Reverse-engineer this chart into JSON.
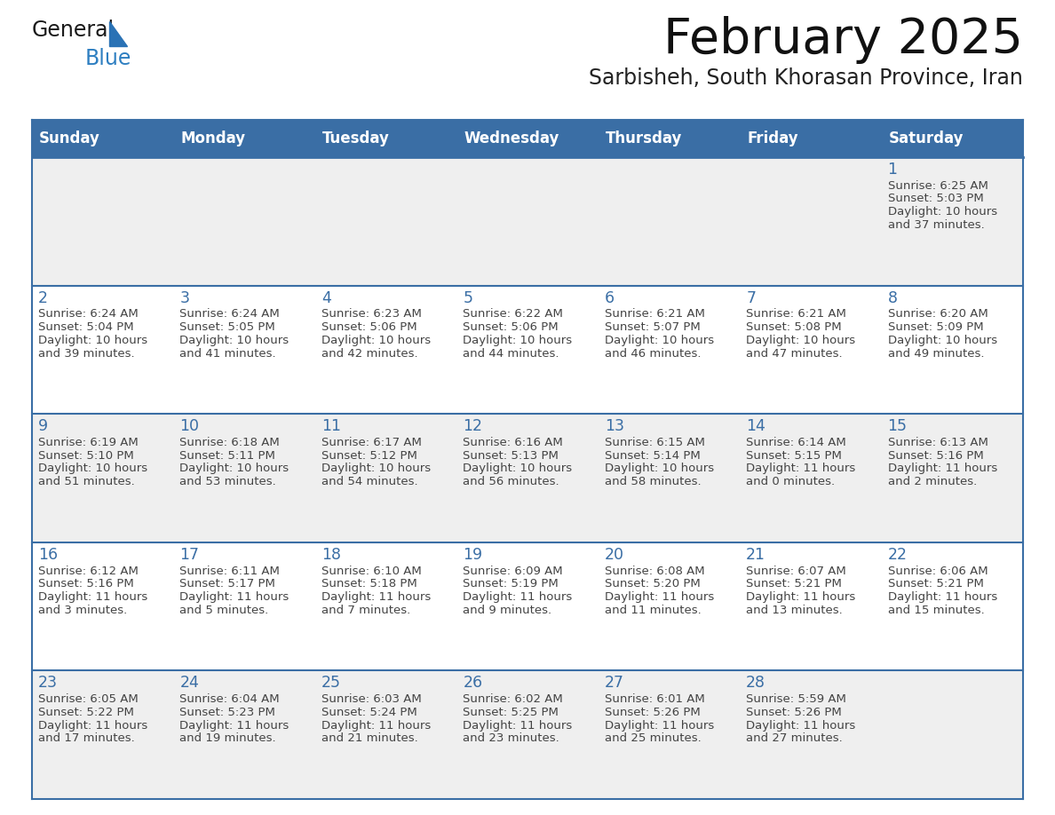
{
  "title": "February 2025",
  "subtitle": "Sarbisheh, South Khorasan Province, Iran",
  "header_bg_color": "#3a6ea5",
  "header_text_color": "#ffffff",
  "cell_bg_row0": "#efefef",
  "cell_bg_even": "#efefef",
  "cell_bg_odd": "#ffffff",
  "separator_color": "#3a6ea5",
  "day_text_color": "#3a6ea5",
  "info_text_color": "#444444",
  "weekdays": [
    "Sunday",
    "Monday",
    "Tuesday",
    "Wednesday",
    "Thursday",
    "Friday",
    "Saturday"
  ],
  "days": [
    {
      "day": 1,
      "col": 6,
      "row": 0,
      "sunrise": "6:25 AM",
      "sunset": "5:03 PM",
      "daylight_h": "10 hours",
      "daylight_m": "and 37 minutes."
    },
    {
      "day": 2,
      "col": 0,
      "row": 1,
      "sunrise": "6:24 AM",
      "sunset": "5:04 PM",
      "daylight_h": "10 hours",
      "daylight_m": "and 39 minutes."
    },
    {
      "day": 3,
      "col": 1,
      "row": 1,
      "sunrise": "6:24 AM",
      "sunset": "5:05 PM",
      "daylight_h": "10 hours",
      "daylight_m": "and 41 minutes."
    },
    {
      "day": 4,
      "col": 2,
      "row": 1,
      "sunrise": "6:23 AM",
      "sunset": "5:06 PM",
      "daylight_h": "10 hours",
      "daylight_m": "and 42 minutes."
    },
    {
      "day": 5,
      "col": 3,
      "row": 1,
      "sunrise": "6:22 AM",
      "sunset": "5:06 PM",
      "daylight_h": "10 hours",
      "daylight_m": "and 44 minutes."
    },
    {
      "day": 6,
      "col": 4,
      "row": 1,
      "sunrise": "6:21 AM",
      "sunset": "5:07 PM",
      "daylight_h": "10 hours",
      "daylight_m": "and 46 minutes."
    },
    {
      "day": 7,
      "col": 5,
      "row": 1,
      "sunrise": "6:21 AM",
      "sunset": "5:08 PM",
      "daylight_h": "10 hours",
      "daylight_m": "and 47 minutes."
    },
    {
      "day": 8,
      "col": 6,
      "row": 1,
      "sunrise": "6:20 AM",
      "sunset": "5:09 PM",
      "daylight_h": "10 hours",
      "daylight_m": "and 49 minutes."
    },
    {
      "day": 9,
      "col": 0,
      "row": 2,
      "sunrise": "6:19 AM",
      "sunset": "5:10 PM",
      "daylight_h": "10 hours",
      "daylight_m": "and 51 minutes."
    },
    {
      "day": 10,
      "col": 1,
      "row": 2,
      "sunrise": "6:18 AM",
      "sunset": "5:11 PM",
      "daylight_h": "10 hours",
      "daylight_m": "and 53 minutes."
    },
    {
      "day": 11,
      "col": 2,
      "row": 2,
      "sunrise": "6:17 AM",
      "sunset": "5:12 PM",
      "daylight_h": "10 hours",
      "daylight_m": "and 54 minutes."
    },
    {
      "day": 12,
      "col": 3,
      "row": 2,
      "sunrise": "6:16 AM",
      "sunset": "5:13 PM",
      "daylight_h": "10 hours",
      "daylight_m": "and 56 minutes."
    },
    {
      "day": 13,
      "col": 4,
      "row": 2,
      "sunrise": "6:15 AM",
      "sunset": "5:14 PM",
      "daylight_h": "10 hours",
      "daylight_m": "and 58 minutes."
    },
    {
      "day": 14,
      "col": 5,
      "row": 2,
      "sunrise": "6:14 AM",
      "sunset": "5:15 PM",
      "daylight_h": "11 hours",
      "daylight_m": "and 0 minutes."
    },
    {
      "day": 15,
      "col": 6,
      "row": 2,
      "sunrise": "6:13 AM",
      "sunset": "5:16 PM",
      "daylight_h": "11 hours",
      "daylight_m": "and 2 minutes."
    },
    {
      "day": 16,
      "col": 0,
      "row": 3,
      "sunrise": "6:12 AM",
      "sunset": "5:16 PM",
      "daylight_h": "11 hours",
      "daylight_m": "and 3 minutes."
    },
    {
      "day": 17,
      "col": 1,
      "row": 3,
      "sunrise": "6:11 AM",
      "sunset": "5:17 PM",
      "daylight_h": "11 hours",
      "daylight_m": "and 5 minutes."
    },
    {
      "day": 18,
      "col": 2,
      "row": 3,
      "sunrise": "6:10 AM",
      "sunset": "5:18 PM",
      "daylight_h": "11 hours",
      "daylight_m": "and 7 minutes."
    },
    {
      "day": 19,
      "col": 3,
      "row": 3,
      "sunrise": "6:09 AM",
      "sunset": "5:19 PM",
      "daylight_h": "11 hours",
      "daylight_m": "and 9 minutes."
    },
    {
      "day": 20,
      "col": 4,
      "row": 3,
      "sunrise": "6:08 AM",
      "sunset": "5:20 PM",
      "daylight_h": "11 hours",
      "daylight_m": "and 11 minutes."
    },
    {
      "day": 21,
      "col": 5,
      "row": 3,
      "sunrise": "6:07 AM",
      "sunset": "5:21 PM",
      "daylight_h": "11 hours",
      "daylight_m": "and 13 minutes."
    },
    {
      "day": 22,
      "col": 6,
      "row": 3,
      "sunrise": "6:06 AM",
      "sunset": "5:21 PM",
      "daylight_h": "11 hours",
      "daylight_m": "and 15 minutes."
    },
    {
      "day": 23,
      "col": 0,
      "row": 4,
      "sunrise": "6:05 AM",
      "sunset": "5:22 PM",
      "daylight_h": "11 hours",
      "daylight_m": "and 17 minutes."
    },
    {
      "day": 24,
      "col": 1,
      "row": 4,
      "sunrise": "6:04 AM",
      "sunset": "5:23 PM",
      "daylight_h": "11 hours",
      "daylight_m": "and 19 minutes."
    },
    {
      "day": 25,
      "col": 2,
      "row": 4,
      "sunrise": "6:03 AM",
      "sunset": "5:24 PM",
      "daylight_h": "11 hours",
      "daylight_m": "and 21 minutes."
    },
    {
      "day": 26,
      "col": 3,
      "row": 4,
      "sunrise": "6:02 AM",
      "sunset": "5:25 PM",
      "daylight_h": "11 hours",
      "daylight_m": "and 23 minutes."
    },
    {
      "day": 27,
      "col": 4,
      "row": 4,
      "sunrise": "6:01 AM",
      "sunset": "5:26 PM",
      "daylight_h": "11 hours",
      "daylight_m": "and 25 minutes."
    },
    {
      "day": 28,
      "col": 5,
      "row": 4,
      "sunrise": "5:59 AM",
      "sunset": "5:26 PM",
      "daylight_h": "11 hours",
      "daylight_m": "and 27 minutes."
    }
  ],
  "logo_general_color": "#1a1a1a",
  "logo_blue_color": "#2e7fc1",
  "logo_triangle_color": "#2a72b5"
}
